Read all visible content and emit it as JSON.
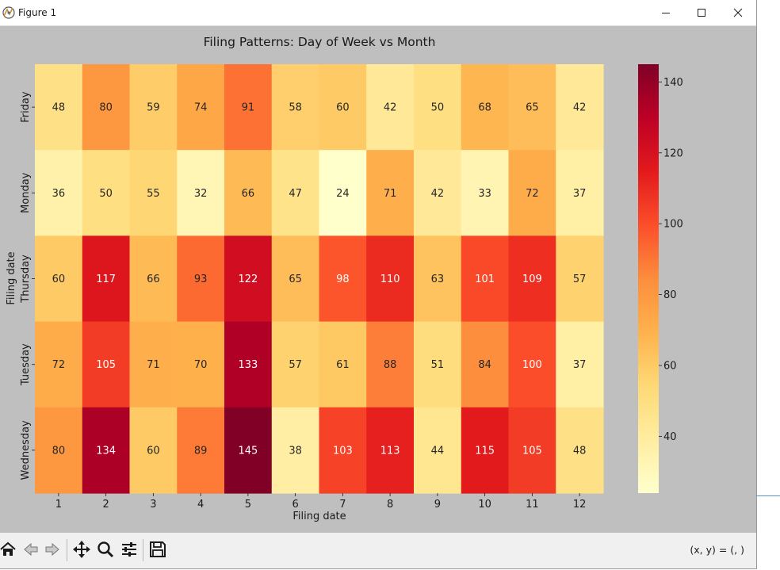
{
  "window": {
    "title": "Figure 1"
  },
  "toolbar": {
    "coords_readout": "(x, y) = (, )"
  },
  "chart_data": {
    "type": "heatmap",
    "title": "Filing Patterns: Day of Week vs Month",
    "xlabel": "Filing date",
    "ylabel": "Filing date",
    "x_categories": [
      "1",
      "2",
      "3",
      "4",
      "5",
      "6",
      "7",
      "8",
      "9",
      "10",
      "11",
      "12"
    ],
    "y_categories": [
      "Friday",
      "Monday",
      "Thursday",
      "Tuesday",
      "Wednesday"
    ],
    "values": [
      [
        48,
        80,
        59,
        74,
        91,
        58,
        60,
        42,
        50,
        68,
        65,
        42
      ],
      [
        36,
        50,
        55,
        32,
        66,
        47,
        24,
        71,
        42,
        33,
        72,
        37
      ],
      [
        60,
        117,
        66,
        93,
        122,
        65,
        98,
        110,
        63,
        101,
        109,
        57
      ],
      [
        72,
        105,
        71,
        70,
        133,
        57,
        61,
        88,
        51,
        84,
        100,
        37
      ],
      [
        80,
        134,
        60,
        89,
        145,
        38,
        103,
        113,
        44,
        115,
        105,
        48
      ]
    ],
    "colormap": "YlOrRd",
    "vmin": 24,
    "vmax": 145,
    "colorbar_ticks": [
      40,
      60,
      80,
      100,
      120,
      140
    ],
    "annotated": true
  }
}
